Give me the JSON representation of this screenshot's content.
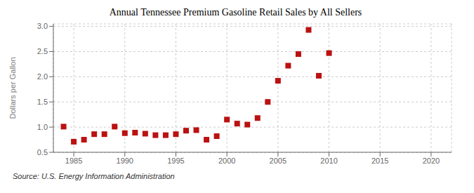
{
  "chart_data": {
    "type": "scatter",
    "title": "Annual Tennessee Premium Gasoline Retail Sales by All Sellers",
    "ylabel": "Dollars per Gallon",
    "annotations": [
      "Source: U.S. Energy Information Administration"
    ],
    "color": "#bb1111",
    "marker": "square",
    "grid": true,
    "xlim": [
      1983,
      2022
    ],
    "ylim": [
      0.5,
      3.05
    ],
    "xticks": [
      1985,
      1990,
      1995,
      2000,
      2005,
      2010,
      2015,
      2020
    ],
    "yticks": [
      0.5,
      {
        "value": 1,
        "label": "1.0"
      },
      1.5,
      {
        "value": 2,
        "label": "2.0"
      },
      2.5,
      {
        "value": 3,
        "label": "3.0"
      }
    ],
    "x": [
      1984,
      1985,
      1986,
      1987,
      1988,
      1989,
      1990,
      1991,
      1992,
      1993,
      1994,
      1995,
      1996,
      1997,
      1998,
      1999,
      2000,
      2001,
      2002,
      2003,
      2004,
      2005,
      2006,
      2007,
      2008,
      2009,
      2010
    ],
    "values": [
      1.01,
      0.71,
      0.75,
      0.86,
      0.86,
      1.01,
      0.88,
      0.89,
      0.87,
      0.84,
      0.84,
      0.86,
      0.93,
      0.94,
      0.75,
      0.82,
      1.15,
      1.07,
      1.05,
      1.18,
      1.5,
      1.92,
      2.22,
      2.45,
      2.93,
      2.02,
      2.47
    ]
  }
}
